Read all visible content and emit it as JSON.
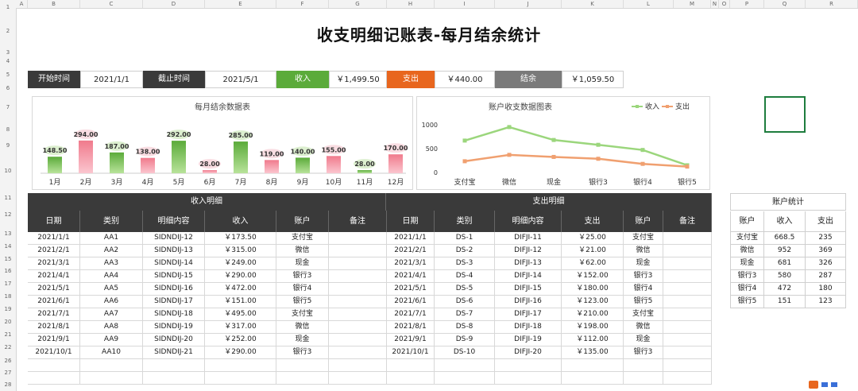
{
  "columns": [
    "A",
    "B",
    "C",
    "D",
    "E",
    "F",
    "G",
    "H",
    "I",
    "J",
    "K",
    "L",
    "M",
    "N",
    "O",
    "P",
    "Q",
    "R"
  ],
  "rows": [
    "1",
    "2",
    "3",
    "4",
    "5",
    "6",
    "7",
    "8",
    "9",
    "10",
    "11",
    "12",
    "13",
    "14",
    "15",
    "16",
    "17",
    "18",
    "19",
    "20",
    "21",
    "22",
    "26",
    "27",
    "28"
  ],
  "title": "收支明细记账表-每月结余统计",
  "summary": {
    "start_label": "开始时间",
    "start_value": "2021/1/1",
    "end_label": "截止时间",
    "end_value": "2021/5/1",
    "income_label": "收入",
    "income_value": "￥1,499.50",
    "expense_label": "支出",
    "expense_value": "￥440.00",
    "balance_label": "结余",
    "balance_value": "￥1,059.50"
  },
  "chart_data": [
    {
      "type": "bar",
      "title": "每月结余数据表",
      "categories": [
        "1月",
        "2月",
        "3月",
        "4月",
        "5月",
        "6月",
        "7月",
        "8月",
        "9月",
        "10月",
        "11月",
        "12月"
      ],
      "values": [
        148.5,
        294.0,
        187.0,
        138.0,
        292.0,
        28.0,
        285.0,
        119.0,
        140.0,
        155.0,
        28.0,
        170.0
      ],
      "labels": [
        "148.50",
        "294.00",
        "187.00",
        "138.00",
        "292.00",
        "28.00",
        "285.00",
        "119.00",
        "140.00",
        "155.00",
        "28.00",
        "170.00"
      ],
      "colors": [
        "green",
        "pink",
        "green",
        "pink",
        "green",
        "pink",
        "green",
        "pink",
        "green",
        "pink",
        "green",
        "pink"
      ],
      "green": "#5bab3a",
      "pink": "#f07a8c",
      "ylim": [
        0,
        300
      ]
    },
    {
      "type": "line",
      "title": "账户收支数据图表",
      "categories": [
        "支付宝",
        "微信",
        "现金",
        "银行3",
        "银行4",
        "银行5"
      ],
      "yticks": [
        "1000",
        "500",
        "0"
      ],
      "ylim": [
        0,
        1000
      ],
      "series": [
        {
          "name": "收入",
          "values": [
            668.5,
            952,
            681,
            580,
            472,
            151
          ],
          "color": "#9bd67c"
        },
        {
          "name": "支出",
          "values": [
            235,
            369,
            326,
            287,
            180,
            123
          ],
          "color": "#f0a070"
        }
      ],
      "legend": "top-right"
    }
  ],
  "income_table": {
    "title": "收入明细",
    "headers": [
      "日期",
      "类别",
      "明细内容",
      "收入",
      "账户",
      "备注"
    ],
    "rows": [
      [
        "2021/1/1",
        "AA1",
        "SIDNDIJ-12",
        "￥173.50",
        "支付宝",
        ""
      ],
      [
        "2021/2/1",
        "AA2",
        "SIDNDIJ-13",
        "￥315.00",
        "微信",
        ""
      ],
      [
        "2021/3/1",
        "AA3",
        "SIDNDIJ-14",
        "￥249.00",
        "现金",
        ""
      ],
      [
        "2021/4/1",
        "AA4",
        "SIDNDIJ-15",
        "￥290.00",
        "银行3",
        ""
      ],
      [
        "2021/5/1",
        "AA5",
        "SIDNDIJ-16",
        "￥472.00",
        "银行4",
        ""
      ],
      [
        "2021/6/1",
        "AA6",
        "SIDNDIJ-17",
        "￥151.00",
        "银行5",
        ""
      ],
      [
        "2021/7/1",
        "AA7",
        "SIDNDIJ-18",
        "￥495.00",
        "支付宝",
        ""
      ],
      [
        "2021/8/1",
        "AA8",
        "SIDNDIJ-19",
        "￥317.00",
        "微信",
        ""
      ],
      [
        "2021/9/1",
        "AA9",
        "SIDNDIJ-20",
        "￥252.00",
        "现金",
        ""
      ],
      [
        "2021/10/1",
        "AA10",
        "SIDNDIJ-21",
        "￥290.00",
        "银行3",
        ""
      ]
    ]
  },
  "expense_table": {
    "title": "支出明细",
    "headers": [
      "日期",
      "类别",
      "明细内容",
      "支出",
      "账户",
      "备注"
    ],
    "rows": [
      [
        "2021/1/1",
        "DS-1",
        "DIFJI-11",
        "￥25.00",
        "支付宝",
        ""
      ],
      [
        "2021/2/1",
        "DS-2",
        "DIFJI-12",
        "￥21.00",
        "微信",
        ""
      ],
      [
        "2021/3/1",
        "DS-3",
        "DIFJI-13",
        "￥62.00",
        "现金",
        ""
      ],
      [
        "2021/4/1",
        "DS-4",
        "DIFJI-14",
        "￥152.00",
        "银行3",
        ""
      ],
      [
        "2021/5/1",
        "DS-5",
        "DIFJI-15",
        "￥180.00",
        "银行4",
        ""
      ],
      [
        "2021/6/1",
        "DS-6",
        "DIFJI-16",
        "￥123.00",
        "银行5",
        ""
      ],
      [
        "2021/7/1",
        "DS-7",
        "DIFJI-17",
        "￥210.00",
        "支付宝",
        ""
      ],
      [
        "2021/8/1",
        "DS-8",
        "DIFJI-18",
        "￥198.00",
        "微信",
        ""
      ],
      [
        "2021/9/1",
        "DS-9",
        "DIFJI-19",
        "￥112.00",
        "现金",
        ""
      ],
      [
        "2021/10/1",
        "DS-10",
        "DIFJI-20",
        "￥135.00",
        "银行3",
        ""
      ]
    ]
  },
  "account_table": {
    "title": "账户统计",
    "headers": [
      "账户",
      "收入",
      "支出"
    ],
    "rows": [
      [
        "支付宝",
        "668.5",
        "235"
      ],
      [
        "微信",
        "952",
        "369"
      ],
      [
        "现金",
        "681",
        "326"
      ],
      [
        "银行3",
        "580",
        "287"
      ],
      [
        "银行4",
        "472",
        "180"
      ],
      [
        "银行5",
        "151",
        "123"
      ]
    ]
  }
}
